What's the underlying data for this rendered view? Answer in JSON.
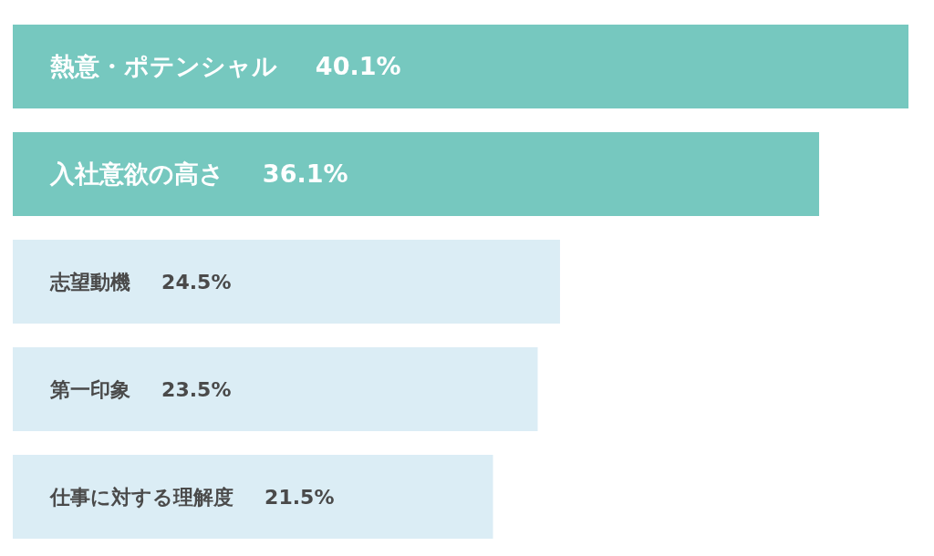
{
  "chart_data": {
    "type": "bar",
    "orientation": "horizontal",
    "categories": [
      "熱意・ポテンシャル",
      "入社意欲の高さ",
      "志望動機",
      "第一印象",
      "仕事に対する理解度"
    ],
    "values": [
      40.1,
      36.1,
      24.5,
      23.5,
      21.5
    ],
    "colors": [
      "#76c8bf",
      "#76c8bf",
      "#dbedf5",
      "#dbedf5",
      "#dbedf5"
    ],
    "value_labels": [
      "40.1%",
      "36.1%",
      "24.5%",
      "23.5%",
      "21.5%"
    ],
    "tick_labels": false
  }
}
